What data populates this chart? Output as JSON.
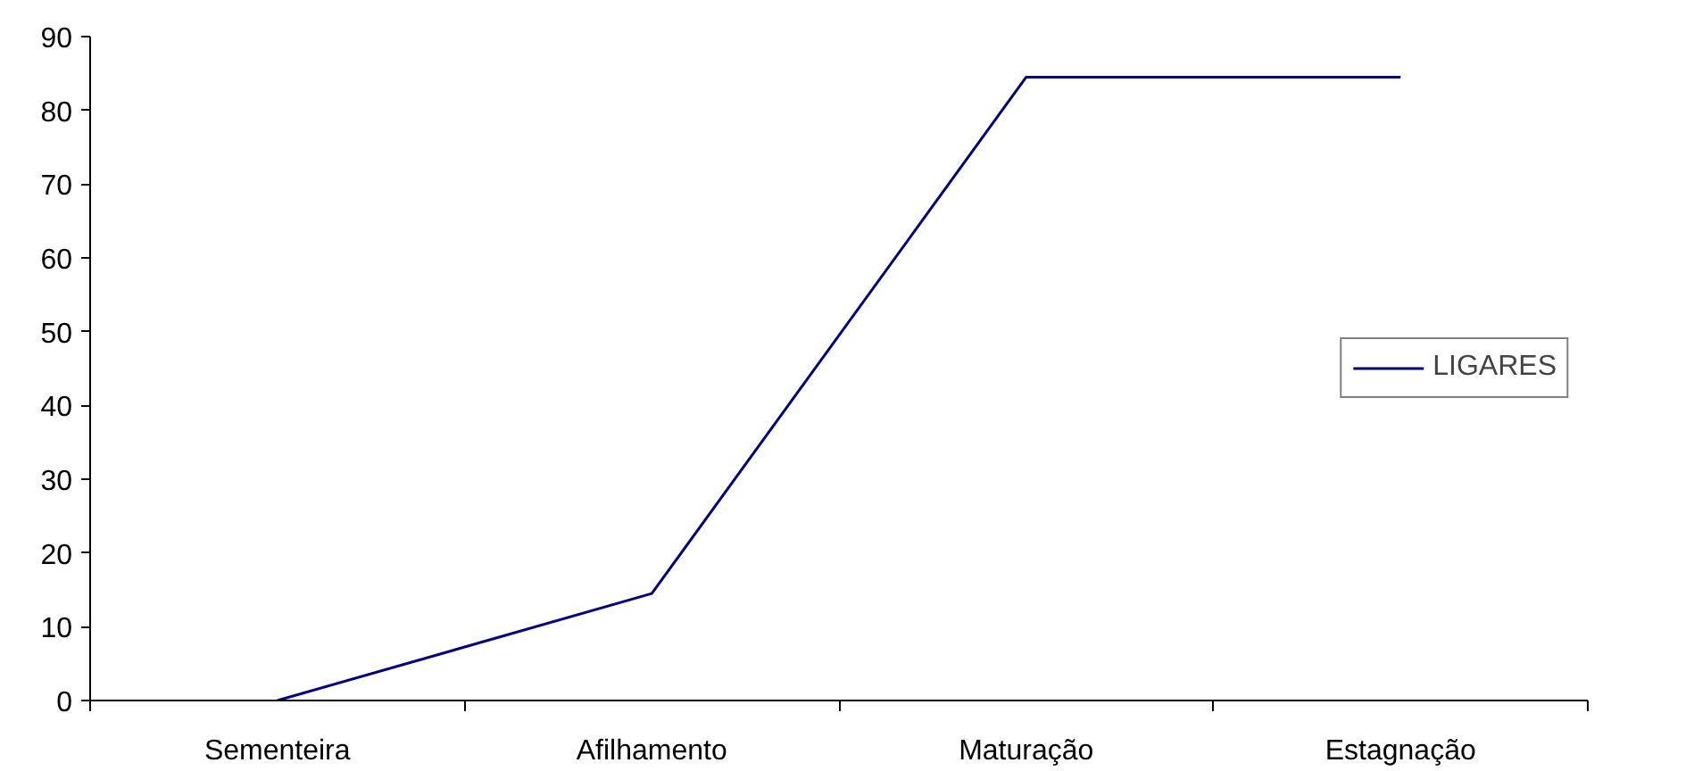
{
  "chart_data": {
    "type": "line",
    "categories": [
      "Sementeira",
      "Afilhamento",
      "Maturação",
      "Estagnação"
    ],
    "series": [
      {
        "name": "LIGARES",
        "color": "#000080",
        "values": [
          0,
          14.5,
          84.5,
          84.5
        ]
      }
    ],
    "ylim": [
      0,
      90
    ],
    "yticks": [
      0,
      10,
      20,
      30,
      40,
      50,
      60,
      70,
      80,
      90
    ],
    "grid": false,
    "legend": "right",
    "marker": "none",
    "line_style": "solid"
  }
}
